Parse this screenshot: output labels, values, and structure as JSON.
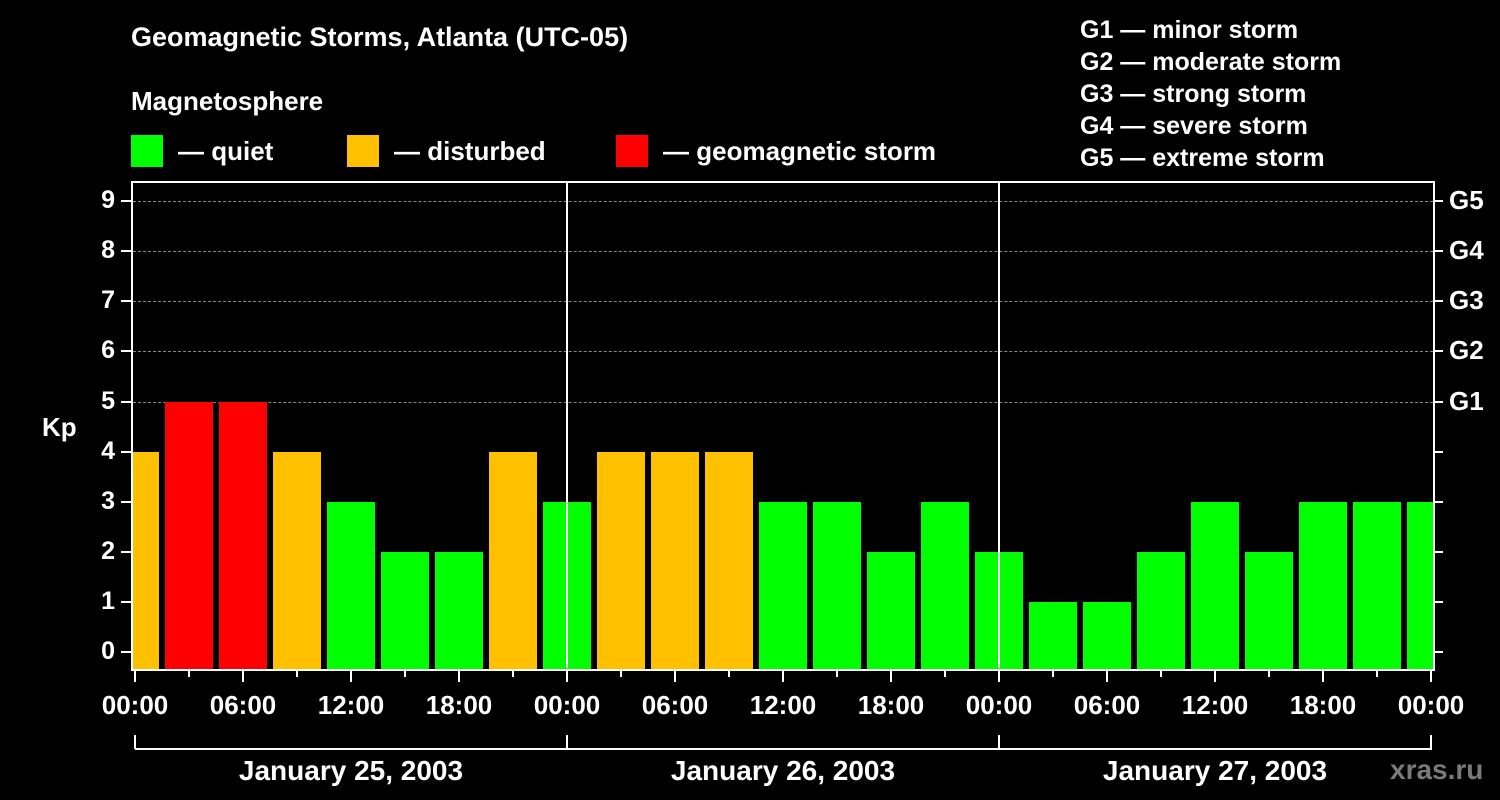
{
  "title": "Geomagnetic Storms, Atlanta (UTC-05)",
  "subtitle": "Magnetosphere",
  "legend": [
    {
      "label": "— quiet",
      "color": "#00ff00"
    },
    {
      "label": "— disturbed",
      "color": "#ffc000"
    },
    {
      "label": "— geomagnetic storm",
      "color": "#ff0000"
    }
  ],
  "g_scale": [
    "G1 — minor storm",
    "G2 — moderate storm",
    "G3 — strong storm",
    "G4 — severe storm",
    "G5 — extreme storm"
  ],
  "y_axis_label": "Kp",
  "watermark": "xras.ru",
  "chart_data": {
    "type": "bar",
    "title": "Geomagnetic Storms, Atlanta (UTC-05)",
    "xlabel": "",
    "ylabel": "Kp",
    "ylim": [
      0,
      9
    ],
    "y_ticks": [
      0,
      1,
      2,
      3,
      4,
      5,
      6,
      7,
      8,
      9
    ],
    "right_axis_ticks": [
      {
        "kp": 5,
        "label": "G1"
      },
      {
        "kp": 6,
        "label": "G2"
      },
      {
        "kp": 7,
        "label": "G3"
      },
      {
        "kp": 8,
        "label": "G4"
      },
      {
        "kp": 9,
        "label": "G5"
      }
    ],
    "x_tick_labels": [
      "00:00",
      "06:00",
      "12:00",
      "18:00",
      "00:00",
      "06:00",
      "12:00",
      "18:00",
      "00:00",
      "06:00",
      "12:00",
      "18:00",
      "00:00"
    ],
    "day_labels": [
      "January 25, 2003",
      "January 26, 2003",
      "January 27, 2003"
    ],
    "grid": "horizontal dashed",
    "colors": {
      "quiet": "#00ff00",
      "disturbed": "#ffc000",
      "storm": "#ff0000"
    },
    "categories": [
      "Jan25 ~00",
      "Jan25 ~03",
      "Jan25 ~06",
      "Jan25 ~09",
      "Jan25 ~12",
      "Jan25 ~15",
      "Jan25 ~18",
      "Jan25 ~21",
      "Jan26 ~00",
      "Jan26 ~03",
      "Jan26 ~06",
      "Jan26 ~09",
      "Jan26 ~12",
      "Jan26 ~15",
      "Jan26 ~18",
      "Jan26 ~21",
      "Jan27 ~00",
      "Jan27 ~03",
      "Jan27 ~06",
      "Jan27 ~09",
      "Jan27 ~12",
      "Jan27 ~15",
      "Jan27 ~18",
      "Jan27 ~21",
      "Jan28 ~00"
    ],
    "values": [
      4,
      5,
      5,
      4,
      3,
      2,
      2,
      4,
      3,
      4,
      4,
      4,
      3,
      3,
      2,
      3,
      2,
      1,
      1,
      2,
      3,
      2,
      3,
      3,
      3
    ],
    "states": [
      "disturbed",
      "storm",
      "storm",
      "disturbed",
      "quiet",
      "quiet",
      "quiet",
      "disturbed",
      "quiet",
      "disturbed",
      "disturbed",
      "disturbed",
      "quiet",
      "quiet",
      "quiet",
      "quiet",
      "quiet",
      "quiet",
      "quiet",
      "quiet",
      "quiet",
      "quiet",
      "quiet",
      "quiet",
      "quiet"
    ]
  }
}
